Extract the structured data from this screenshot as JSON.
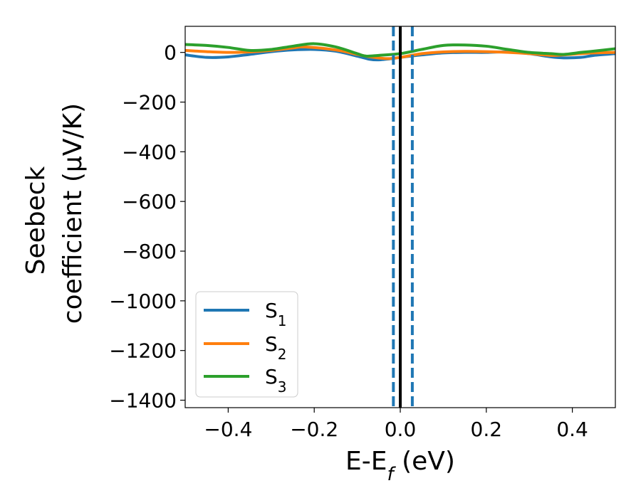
{
  "chart_data": {
    "type": "line",
    "xlabel": {
      "main": "E-E",
      "sub": "f",
      "unit": " (eV)"
    },
    "ylabel": {
      "line1": "Seebeck",
      "line2": "coefficient  (μV/K)"
    },
    "xlim": [
      -0.5,
      0.5
    ],
    "ylim": [
      -1430,
      105
    ],
    "xticks": [
      -0.4,
      -0.2,
      0.0,
      0.2,
      0.4
    ],
    "xtick_labels": [
      "−0.4",
      "−0.2",
      "0.0",
      "0.2",
      "0.4"
    ],
    "yticks": [
      0,
      -200,
      -400,
      -600,
      -800,
      -1000,
      -1200,
      -1400
    ],
    "ytick_labels": [
      "0",
      "−200",
      "−400",
      "−600",
      "−800",
      "−1000",
      "−1200",
      "−1400"
    ],
    "grid": false,
    "legend_placement": "lower-left",
    "series": [
      {
        "name": "S",
        "sub": "1",
        "color": "#1f77b4",
        "x": [
          -0.5,
          -0.45,
          -0.4,
          -0.35,
          -0.3,
          -0.25,
          -0.2,
          -0.15,
          -0.1,
          -0.07,
          -0.05,
          -0.02,
          0.0,
          0.05,
          0.1,
          0.15,
          0.2,
          0.25,
          0.3,
          0.35,
          0.38,
          0.42,
          0.45,
          0.5
        ],
        "y": [
          -10,
          -20,
          -18,
          -8,
          3,
          10,
          12,
          5,
          -15,
          -28,
          -30,
          -25,
          -20,
          -10,
          -2,
          0,
          0,
          2,
          -5,
          -18,
          -22,
          -20,
          -12,
          -5
        ]
      },
      {
        "name": "S",
        "sub": "2",
        "color": "#ff7f0e",
        "x": [
          -0.5,
          -0.45,
          -0.4,
          -0.35,
          -0.3,
          -0.25,
          -0.22,
          -0.15,
          -0.1,
          -0.07,
          -0.03,
          0.0,
          0.05,
          0.1,
          0.15,
          0.2,
          0.25,
          0.3,
          0.35,
          0.38,
          0.42,
          0.45,
          0.5
        ],
        "y": [
          8,
          3,
          0,
          2,
          8,
          18,
          22,
          10,
          -8,
          -18,
          -25,
          -20,
          -5,
          2,
          4,
          3,
          0,
          -5,
          -12,
          -10,
          -5,
          -2,
          0
        ]
      },
      {
        "name": "S",
        "sub": "3",
        "color": "#2ca02c",
        "x": [
          -0.5,
          -0.45,
          -0.4,
          -0.35,
          -0.3,
          -0.25,
          -0.2,
          -0.15,
          -0.1,
          -0.08,
          -0.05,
          0.0,
          0.05,
          0.1,
          0.15,
          0.2,
          0.25,
          0.3,
          0.35,
          0.38,
          0.42,
          0.45,
          0.5
        ],
        "y": [
          32,
          28,
          20,
          8,
          12,
          25,
          35,
          22,
          -5,
          -15,
          -12,
          -5,
          12,
          28,
          30,
          25,
          12,
          0,
          -5,
          -8,
          0,
          5,
          15
        ]
      }
    ],
    "vertical_lines": [
      {
        "x": 0.0,
        "style": "solid",
        "color": "#000000"
      },
      {
        "x": -0.016,
        "style": "dashed",
        "color": "#1f77b4"
      },
      {
        "x": 0.028,
        "style": "dashed",
        "color": "#1f77b4"
      }
    ]
  }
}
